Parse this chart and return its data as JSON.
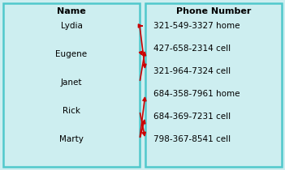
{
  "left_header": "Name",
  "right_header": "Phone Number",
  "names": [
    "Lydia",
    "Eugene",
    "Janet",
    "Rick",
    "Marty"
  ],
  "phones": [
    "321-549-3327 home",
    "427-658-2314 cell",
    "321-964-7324 cell",
    "684-358-7961 home",
    "684-369-7231 cell",
    "798-367-8541 cell"
  ],
  "arrows": [
    [
      0,
      0
    ],
    [
      0,
      2
    ],
    [
      1,
      1
    ],
    [
      2,
      1
    ],
    [
      3,
      5
    ],
    [
      4,
      3
    ],
    [
      4,
      4
    ]
  ],
  "bg_color": "#cdeef0",
  "border_color": "#50c8cc",
  "arrow_color": "#cc0000",
  "header_fontsize": 8,
  "item_fontsize": 7.5
}
